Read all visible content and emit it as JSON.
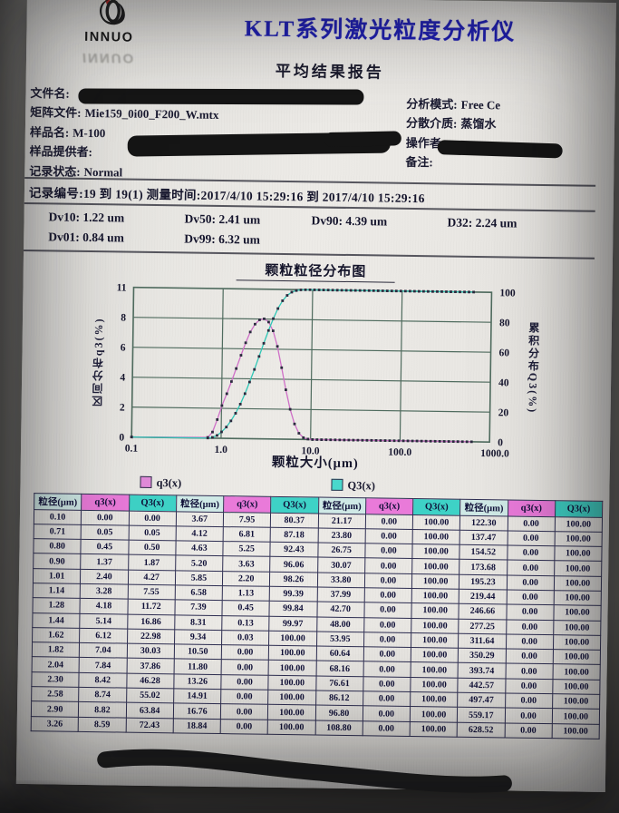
{
  "header": {
    "logo_text": "INNUO",
    "logo_reflection_text": "INNUO",
    "title": "KLT系列激光粒度分析仪",
    "subtitle": "平均结果报告"
  },
  "info": {
    "left": [
      {
        "label": "文件名:",
        "value": "",
        "redacted": true
      },
      {
        "label": "矩阵文件:",
        "value": "Mie159_0i00_F200_W.mtx",
        "redacted": false
      },
      {
        "label": "样品名:",
        "value": "M-100",
        "redacted": false
      },
      {
        "label": "样品提供者:",
        "value": "",
        "redacted": true
      },
      {
        "label": "记录状态:",
        "value": "Normal",
        "redacted": false
      }
    ],
    "right": [
      {
        "label": "分析模式:",
        "value": "Free Ce",
        "redacted": false
      },
      {
        "label": "分散介质:",
        "value": "蒸馏水",
        "redacted": false
      },
      {
        "label": "操作者:",
        "value": "",
        "redacted": true
      },
      {
        "label": "备注:",
        "value": "",
        "redacted": false
      }
    ]
  },
  "record_line": "记录编号:19  到  19(1)  测量时间:2017/4/10 15:29:16  到  2017/4/10 15:29:16",
  "dv": {
    "rows": [
      [
        {
          "label": "Dv10:",
          "value": "1.22 um"
        },
        {
          "label": "Dv50:",
          "value": "2.41 um"
        },
        {
          "label": "Dv90:",
          "value": "4.39 um"
        },
        {
          "label": "D32:",
          "value": "2.24 um"
        }
      ],
      [
        {
          "label": "Dv01:",
          "value": "0.84 um"
        },
        {
          "label": "Dv99:",
          "value": "6.32 um"
        }
      ]
    ]
  },
  "chart_data": {
    "type": "line",
    "title": "颗粒粒径分布图",
    "xlabel": "颗粒大小(μm)",
    "ylabel_left": "区间分布q3(%)",
    "ylabel_right": "累积分布Q3(%)",
    "x_scale": "log",
    "xlim": [
      0.1,
      1000
    ],
    "ylim_left": [
      0,
      11
    ],
    "ylim_right": [
      0,
      100
    ],
    "x_ticks": [
      "0.1",
      "1.0",
      "10.0",
      "100.0",
      "1000.0"
    ],
    "y_left_ticks": [
      "0",
      "2",
      "4",
      "6",
      "8",
      "11"
    ],
    "y_right_ticks": [
      "0",
      "20",
      "40",
      "60",
      "80",
      "100"
    ],
    "grid": true,
    "legend": [
      {
        "label": "q3(x)",
        "color": "#e08ad8"
      },
      {
        "label": "Q3(x)",
        "color": "#49d8cc"
      }
    ],
    "x": [
      0.1,
      0.71,
      0.8,
      0.9,
      1.01,
      1.14,
      1.28,
      1.44,
      1.62,
      1.82,
      2.04,
      2.3,
      2.58,
      2.9,
      3.26,
      3.67,
      4.12,
      4.63,
      5.2,
      5.85,
      6.58,
      7.39,
      8.31,
      9.34,
      10.5,
      11.8,
      13.26,
      14.91,
      16.76,
      18.84,
      21.17,
      23.8,
      26.75,
      30.07,
      33.8,
      37.99,
      42.7,
      48.0,
      53.95,
      60.64,
      68.16,
      76.61,
      86.12,
      96.8,
      108.8,
      122.3,
      137.47,
      154.52,
      173.68,
      195.23,
      219.44,
      246.66,
      277.25,
      311.64,
      350.29,
      393.74,
      442.57,
      497.47,
      559.17,
      628.52
    ],
    "series": [
      {
        "name": "q3(x)",
        "axis": "left",
        "color": "#cf6fc7",
        "values": [
          0.0,
          0.05,
          0.45,
          1.37,
          2.4,
          3.28,
          4.18,
          5.14,
          6.12,
          7.04,
          7.84,
          8.42,
          8.74,
          8.82,
          8.59,
          7.95,
          6.81,
          5.25,
          3.63,
          2.2,
          1.13,
          0.45,
          0.13,
          0.03,
          0.0,
          0.0,
          0.0,
          0.0,
          0.0,
          0.0,
          0.0,
          0.0,
          0.0,
          0.0,
          0.0,
          0.0,
          0.0,
          0.0,
          0.0,
          0.0,
          0.0,
          0.0,
          0.0,
          0.0,
          0.0,
          0.0,
          0.0,
          0.0,
          0.0,
          0.0,
          0.0,
          0.0,
          0.0,
          0.0,
          0.0,
          0.0,
          0.0,
          0.0,
          0.0,
          0.0
        ]
      },
      {
        "name": "Q3(x)",
        "axis": "right",
        "color": "#2fc7b6",
        "values": [
          0.0,
          0.05,
          0.5,
          1.87,
          4.27,
          7.55,
          11.72,
          16.86,
          22.98,
          30.03,
          37.86,
          46.28,
          55.02,
          63.84,
          72.43,
          80.37,
          87.18,
          92.43,
          96.06,
          98.26,
          99.39,
          99.84,
          99.97,
          100.0,
          100.0,
          100.0,
          100.0,
          100.0,
          100.0,
          100.0,
          100.0,
          100.0,
          100.0,
          100.0,
          100.0,
          100.0,
          100.0,
          100.0,
          100.0,
          100.0,
          100.0,
          100.0,
          100.0,
          100.0,
          100.0,
          100.0,
          100.0,
          100.0,
          100.0,
          100.0,
          100.0,
          100.0,
          100.0,
          100.0,
          100.0,
          100.0,
          100.0,
          100.0,
          100.0,
          100.0
        ]
      }
    ]
  },
  "table": {
    "headers": [
      "粒径(μm)",
      "q3(x)",
      "Q3(x)",
      "粒径(μm)",
      "q3(x)",
      "Q3(x)",
      "粒径(μm)",
      "q3(x)",
      "Q3(x)",
      "粒径(μm)",
      "q3(x)",
      "Q3(x)"
    ],
    "rows": [
      [
        "0.10",
        "0.00",
        "0.00",
        "3.67",
        "7.95",
        "80.37",
        "21.17",
        "0.00",
        "100.00",
        "122.30",
        "0.00",
        "100.00"
      ],
      [
        "0.71",
        "0.05",
        "0.05",
        "4.12",
        "6.81",
        "87.18",
        "23.80",
        "0.00",
        "100.00",
        "137.47",
        "0.00",
        "100.00"
      ],
      [
        "0.80",
        "0.45",
        "0.50",
        "4.63",
        "5.25",
        "92.43",
        "26.75",
        "0.00",
        "100.00",
        "154.52",
        "0.00",
        "100.00"
      ],
      [
        "0.90",
        "1.37",
        "1.87",
        "5.20",
        "3.63",
        "96.06",
        "30.07",
        "0.00",
        "100.00",
        "173.68",
        "0.00",
        "100.00"
      ],
      [
        "1.01",
        "2.40",
        "4.27",
        "5.85",
        "2.20",
        "98.26",
        "33.80",
        "0.00",
        "100.00",
        "195.23",
        "0.00",
        "100.00"
      ],
      [
        "1.14",
        "3.28",
        "7.55",
        "6.58",
        "1.13",
        "99.39",
        "37.99",
        "0.00",
        "100.00",
        "219.44",
        "0.00",
        "100.00"
      ],
      [
        "1.28",
        "4.18",
        "11.72",
        "7.39",
        "0.45",
        "99.84",
        "42.70",
        "0.00",
        "100.00",
        "246.66",
        "0.00",
        "100.00"
      ],
      [
        "1.44",
        "5.14",
        "16.86",
        "8.31",
        "0.13",
        "99.97",
        "48.00",
        "0.00",
        "100.00",
        "277.25",
        "0.00",
        "100.00"
      ],
      [
        "1.62",
        "6.12",
        "22.98",
        "9.34",
        "0.03",
        "100.00",
        "53.95",
        "0.00",
        "100.00",
        "311.64",
        "0.00",
        "100.00"
      ],
      [
        "1.82",
        "7.04",
        "30.03",
        "10.50",
        "0.00",
        "100.00",
        "60.64",
        "0.00",
        "100.00",
        "350.29",
        "0.00",
        "100.00"
      ],
      [
        "2.04",
        "7.84",
        "37.86",
        "11.80",
        "0.00",
        "100.00",
        "68.16",
        "0.00",
        "100.00",
        "393.74",
        "0.00",
        "100.00"
      ],
      [
        "2.30",
        "8.42",
        "46.28",
        "13.26",
        "0.00",
        "100.00",
        "76.61",
        "0.00",
        "100.00",
        "442.57",
        "0.00",
        "100.00"
      ],
      [
        "2.58",
        "8.74",
        "55.02",
        "14.91",
        "0.00",
        "100.00",
        "86.12",
        "0.00",
        "100.00",
        "497.47",
        "0.00",
        "100.00"
      ],
      [
        "2.90",
        "8.82",
        "63.84",
        "16.76",
        "0.00",
        "100.00",
        "96.80",
        "0.00",
        "100.00",
        "559.17",
        "0.00",
        "100.00"
      ],
      [
        "3.26",
        "8.59",
        "72.43",
        "18.84",
        "0.00",
        "100.00",
        "108.80",
        "0.00",
        "100.00",
        "628.52",
        "0.00",
        "100.00"
      ]
    ]
  },
  "colors": {
    "title_blue": "#1c1cb4",
    "size_header_bg": "#cfe9e6",
    "q3_header_bg": "#e97ad9",
    "Q3_header_bg": "#3ed2c6",
    "q3_line": "#cf6fc7",
    "Q3_line": "#2fc7b6",
    "marker": "#2a2a3e",
    "grid": "#4f6b5e",
    "paper": "#e7e6e2"
  }
}
